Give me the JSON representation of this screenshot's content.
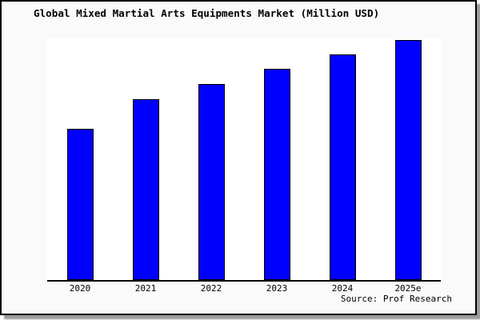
{
  "title": "Global Mixed Martial Arts Equipments Market (Million USD)",
  "source": "Source: Prof Research",
  "chart_data": {
    "type": "bar",
    "title": "Global Mixed Martial Arts Equipments Market (Million USD)",
    "categories": [
      "2020",
      "2021",
      "2022",
      "2023",
      "2024",
      "2025e"
    ],
    "values": [
      63,
      75.3,
      81.7,
      88,
      94,
      100
    ],
    "values_note": "no y-axis ticks or data labels shown; values are relative bar heights normalized to 2025e = 100",
    "xlabel": "",
    "ylabel": "",
    "ylim": [
      0,
      100.7
    ],
    "grid": false,
    "legend": "none",
    "colors": {
      "bar_fill": "#0000ff",
      "bar_edge": "#000000",
      "figure_background": "#fafafa",
      "plot_background": "#ffffff",
      "axis_line": "#000000",
      "text": "#000000",
      "card_border": "#000000",
      "shadow": "#9a9a9a"
    }
  }
}
